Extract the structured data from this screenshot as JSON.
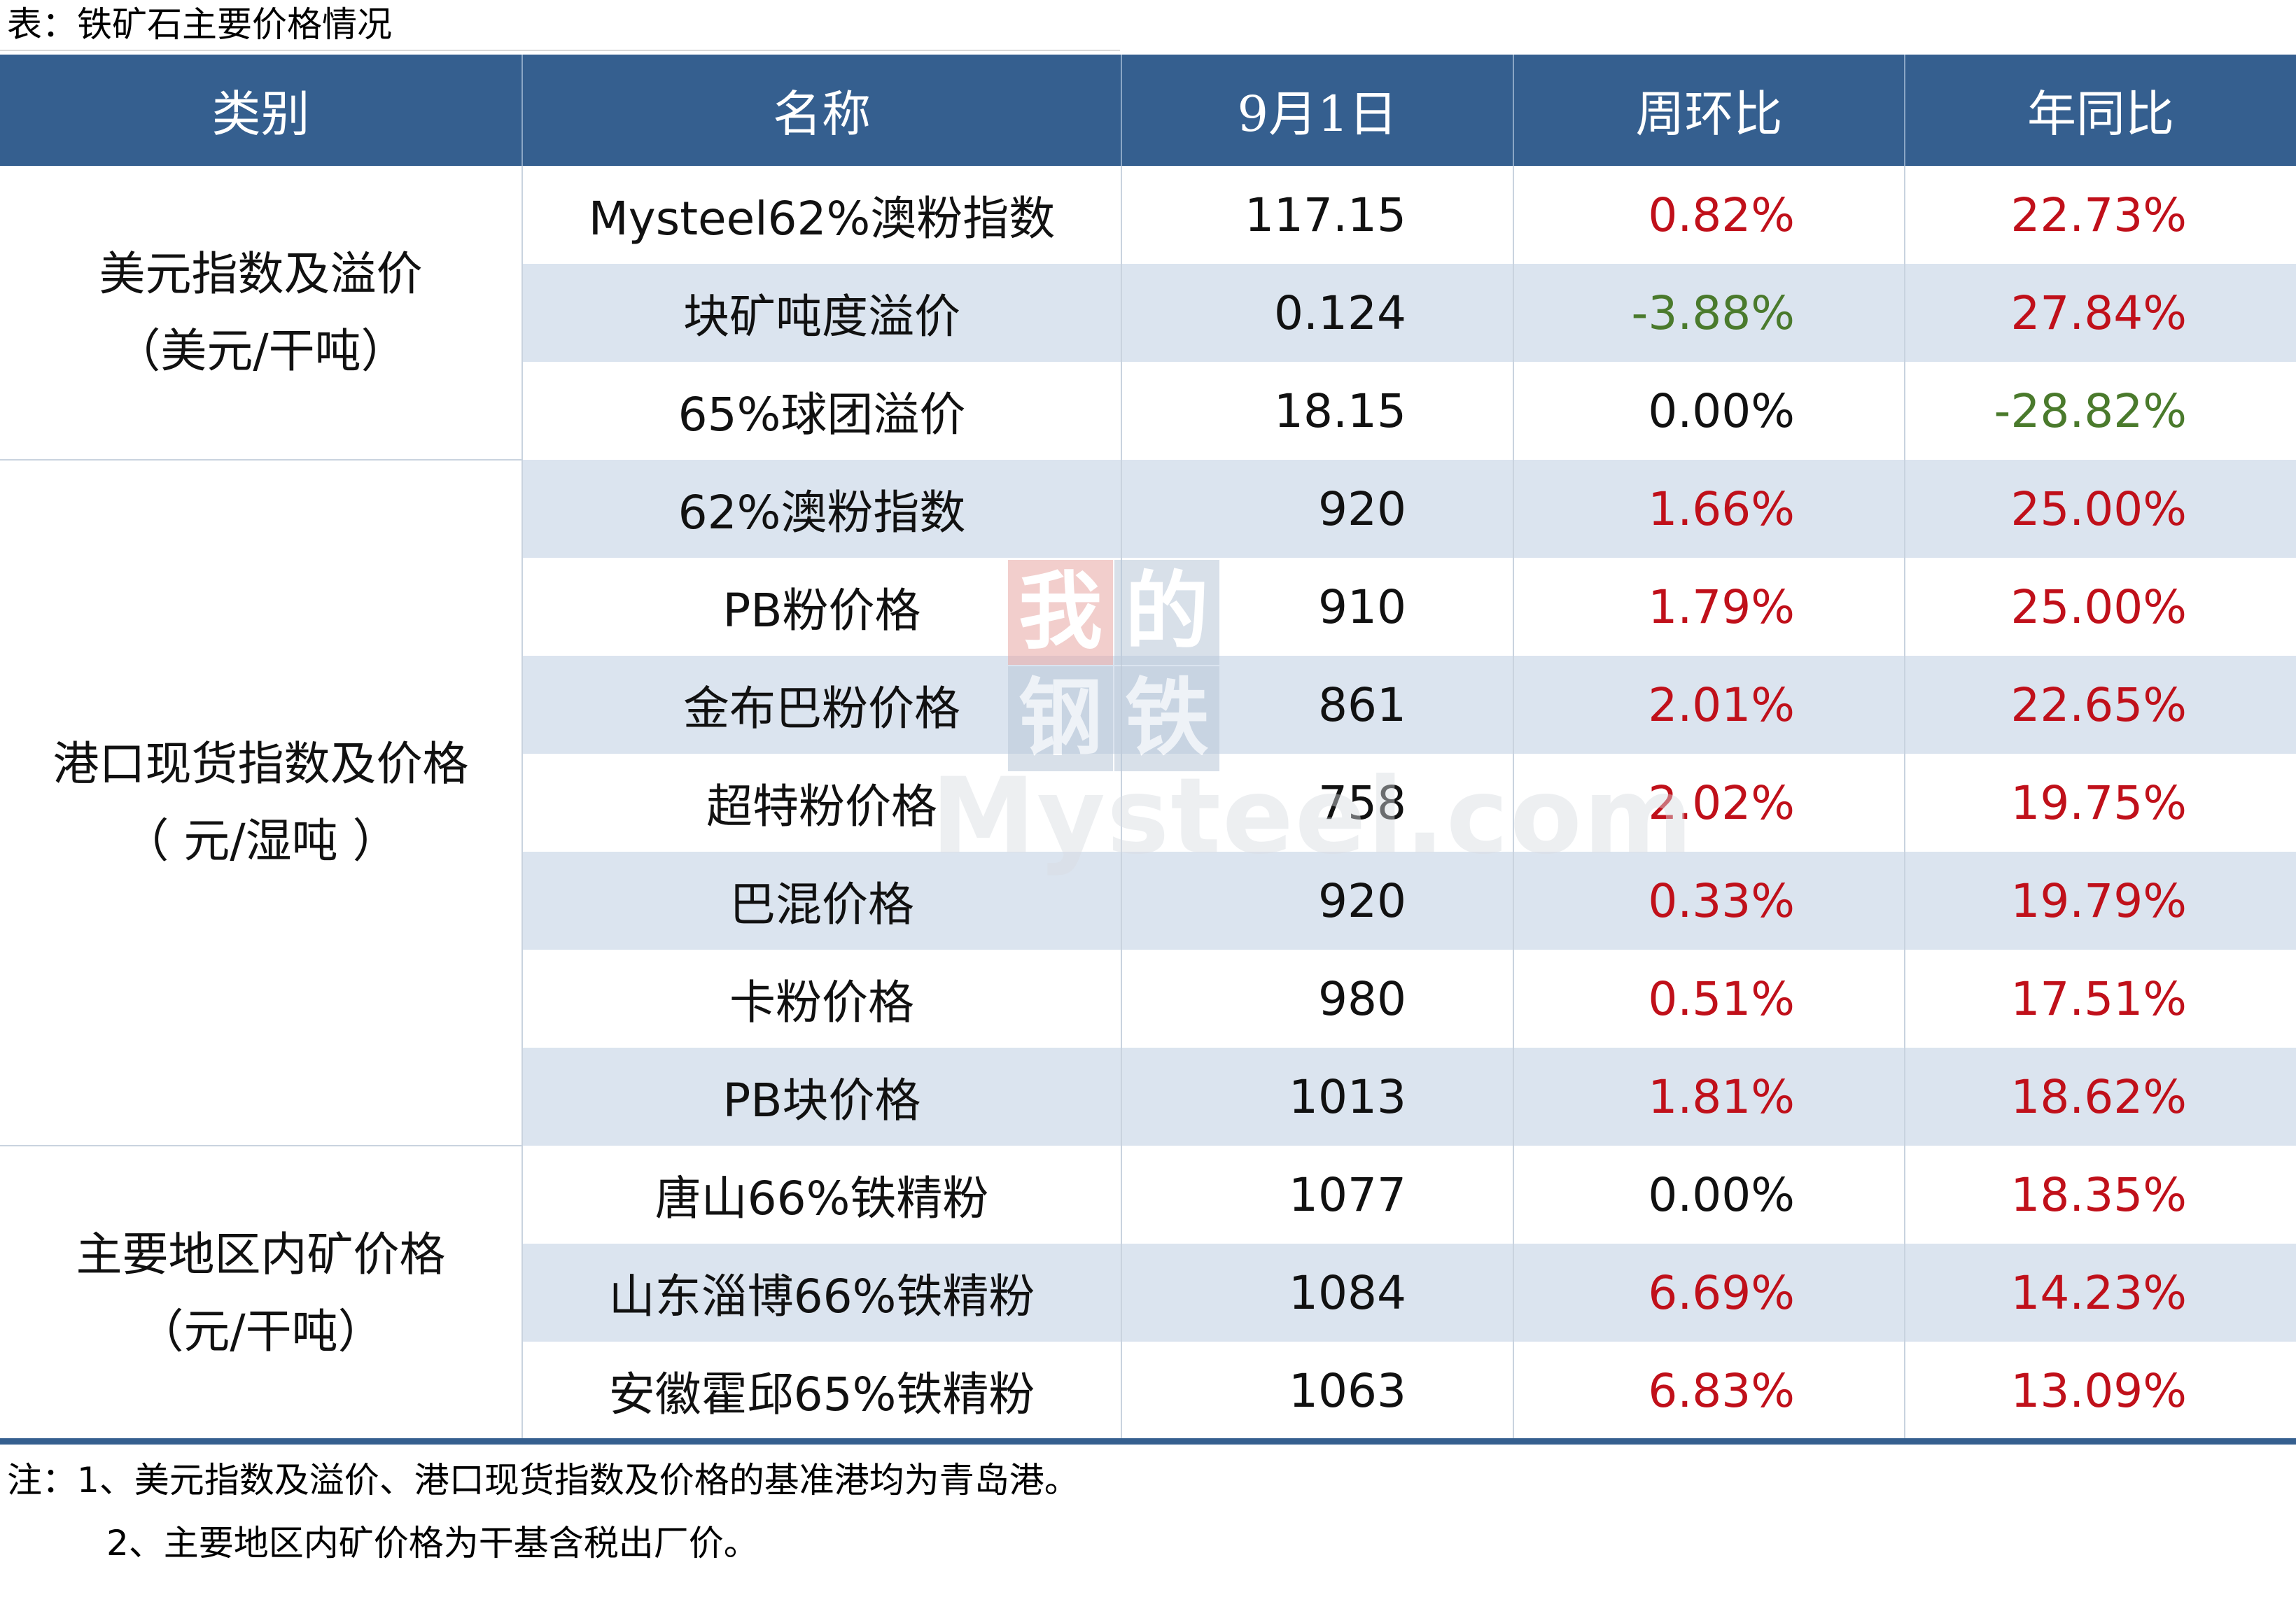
{
  "title": "表：铁矿石主要价格情况",
  "table": {
    "headers": [
      "类别",
      "名称",
      "9月1日",
      "周环比",
      "年同比"
    ],
    "groups": [
      {
        "label_line1": "美元指数及溢价",
        "label_line2": "（美元/干吨）"
      },
      {
        "label_line1": "港口现货指数及价格",
        "label_line2": "（ 元/湿吨 ）"
      },
      {
        "label_line1": "主要地区内矿价格",
        "label_line2": "（元/干吨）"
      }
    ],
    "rows": [
      {
        "name": "Mysteel62%澳粉指数",
        "value": "117.15",
        "wow": "0.82%",
        "yoy": "22.73%"
      },
      {
        "name": "块矿吨度溢价",
        "value": "0.124",
        "wow": "-3.88%",
        "yoy": "27.84%"
      },
      {
        "name": "65%球团溢价",
        "value": "18.15",
        "wow": "0.00%",
        "yoy": "-28.82%"
      },
      {
        "name": "62%澳粉指数",
        "value": "920",
        "wow": "1.66%",
        "yoy": "25.00%"
      },
      {
        "name": "PB粉价格",
        "value": "910",
        "wow": "1.79%",
        "yoy": "25.00%"
      },
      {
        "name": "金布巴粉价格",
        "value": "861",
        "wow": "2.01%",
        "yoy": "22.65%"
      },
      {
        "name": "超特粉价格",
        "value": "758",
        "wow": "2.02%",
        "yoy": "19.75%"
      },
      {
        "name": "巴混价格",
        "value": "920",
        "wow": "0.33%",
        "yoy": "19.79%"
      },
      {
        "name": "卡粉价格",
        "value": "980",
        "wow": "0.51%",
        "yoy": "17.51%"
      },
      {
        "name": "PB块价格",
        "value": "1013",
        "wow": "1.81%",
        "yoy": "18.62%"
      },
      {
        "name": "唐山66%铁精粉",
        "value": "1077",
        "wow": "0.00%",
        "yoy": "18.35%"
      },
      {
        "name": "山东淄博66%铁精粉",
        "value": "1084",
        "wow": "6.69%",
        "yoy": "14.23%"
      },
      {
        "name": "安徽霍邱65%铁精粉",
        "value": "1063",
        "wow": "6.83%",
        "yoy": "13.09%"
      }
    ]
  },
  "notes": {
    "line1": "注：1、美元指数及溢价、港口现货指数及价格的基准港均为青岛港。",
    "line2": "2、主要地区内矿价格为干基含税出厂价。"
  },
  "watermark": {
    "box1": "我",
    "box2": "的",
    "box3": "钢",
    "box4": "铁",
    "text": "Mysteel.com",
    "colors": {
      "box_red": "#e8a7a3",
      "box_blue": "#b9c7d8"
    }
  },
  "colors": {
    "header_bg": "#355f8f",
    "row_shade": "#dbe4ef",
    "positive": "#c0101a",
    "negative": "#4a7a2c"
  }
}
